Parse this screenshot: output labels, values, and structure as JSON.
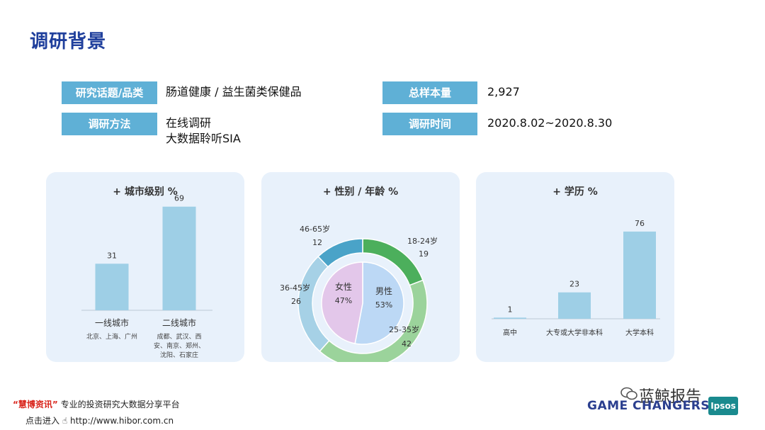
{
  "page": {
    "title": "调研背景"
  },
  "info": {
    "topic_label": "研究话题/品类",
    "topic_value": "肠道健康 / 益生菌类保健品",
    "method_label": "调研方法",
    "method_value_1": "在线调研",
    "method_value_2": "大数据聆听SIA",
    "sample_label": "总样本量",
    "sample_value": "2,927",
    "time_label": "调研时间",
    "time_value": "2020.8.02~2020.8.30"
  },
  "chart_data": [
    {
      "type": "bar",
      "title": "+ 城市级别 %",
      "categories": [
        "一线城市",
        "二线城市"
      ],
      "values": [
        31,
        69
      ],
      "value_labels": [
        "31",
        "69"
      ],
      "subtitles": [
        "北京、上海、广州",
        "成都、武汉、西安、南京、郑州、沈阳、石家庄"
      ],
      "subtitle_lines": [
        [
          "北京、上海、广州"
        ],
        [
          "成都、武汉、西",
          "安、南京、郑州、",
          "沈阳、石家庄"
        ]
      ],
      "ylim": [
        0,
        100
      ],
      "colors": [
        "#9ecfe6"
      ]
    },
    {
      "type": "pie",
      "title": "+ 性别 / 年龄 %",
      "series": [
        {
          "name": "年龄",
          "labels": [
            "18-24岁",
            "25-35岁",
            "36-45岁",
            "46-65岁"
          ],
          "values": [
            19,
            42,
            26,
            12
          ],
          "value_labels": [
            "19",
            "42",
            "26",
            "12"
          ],
          "colors": [
            "#4caf5c",
            "#9bd39b",
            "#a6d1e6",
            "#4aa3c8"
          ]
        },
        {
          "name": "性别",
          "labels": [
            "男性",
            "女性"
          ],
          "values": [
            53,
            47
          ],
          "value_labels": [
            "53%",
            "47%"
          ],
          "colors": [
            "#bcd8f5",
            "#e3c7ea"
          ]
        }
      ]
    },
    {
      "type": "bar",
      "title": "+ 学历 %",
      "categories": [
        "高中",
        "大专或大学非本科",
        "大学本科"
      ],
      "values": [
        1,
        23,
        76
      ],
      "value_labels": [
        "1",
        "23",
        "76"
      ],
      "ylim": [
        0,
        100
      ],
      "colors": [
        "#9ecfe6"
      ]
    }
  ],
  "footer": {
    "brand_quote": "“慧博资讯”",
    "brand_tagline": "专业的投资研究大数据分享平台",
    "visit_label": "点击进入",
    "url": "http://www.hibor.com.cn",
    "slogan": "GAME CHANGERS",
    "logo": "Ipsos",
    "watermark": "蓝鲸报告"
  }
}
